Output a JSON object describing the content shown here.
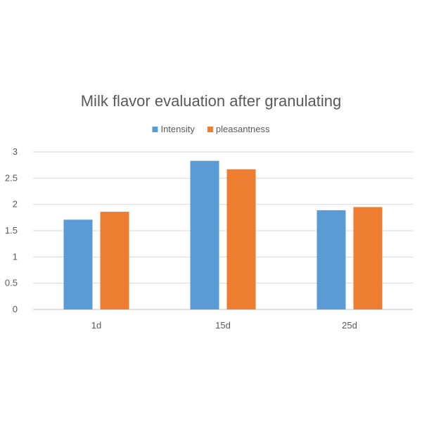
{
  "chart_data": {
    "type": "bar",
    "title": "Milk  flavor evaluation after granulating",
    "categories": [
      "1d",
      "15d",
      "25d"
    ],
    "series": [
      {
        "name": "Intensity",
        "color": "#5b9bd5",
        "values": [
          1.71,
          2.83,
          1.89
        ]
      },
      {
        "name": "pleasantness",
        "color": "#ed7d31",
        "values": [
          1.86,
          2.67,
          1.95
        ]
      }
    ],
    "xlabel": "",
    "ylabel": "",
    "ylim": [
      0,
      3
    ],
    "yticks": [
      0,
      0.5,
      1,
      1.5,
      2,
      2.5,
      3
    ],
    "ytick_labels": [
      "0",
      "0.5",
      "1",
      "1.5",
      "2",
      "2.5",
      "3"
    ],
    "grid": true,
    "legend_position": "top-center"
  }
}
